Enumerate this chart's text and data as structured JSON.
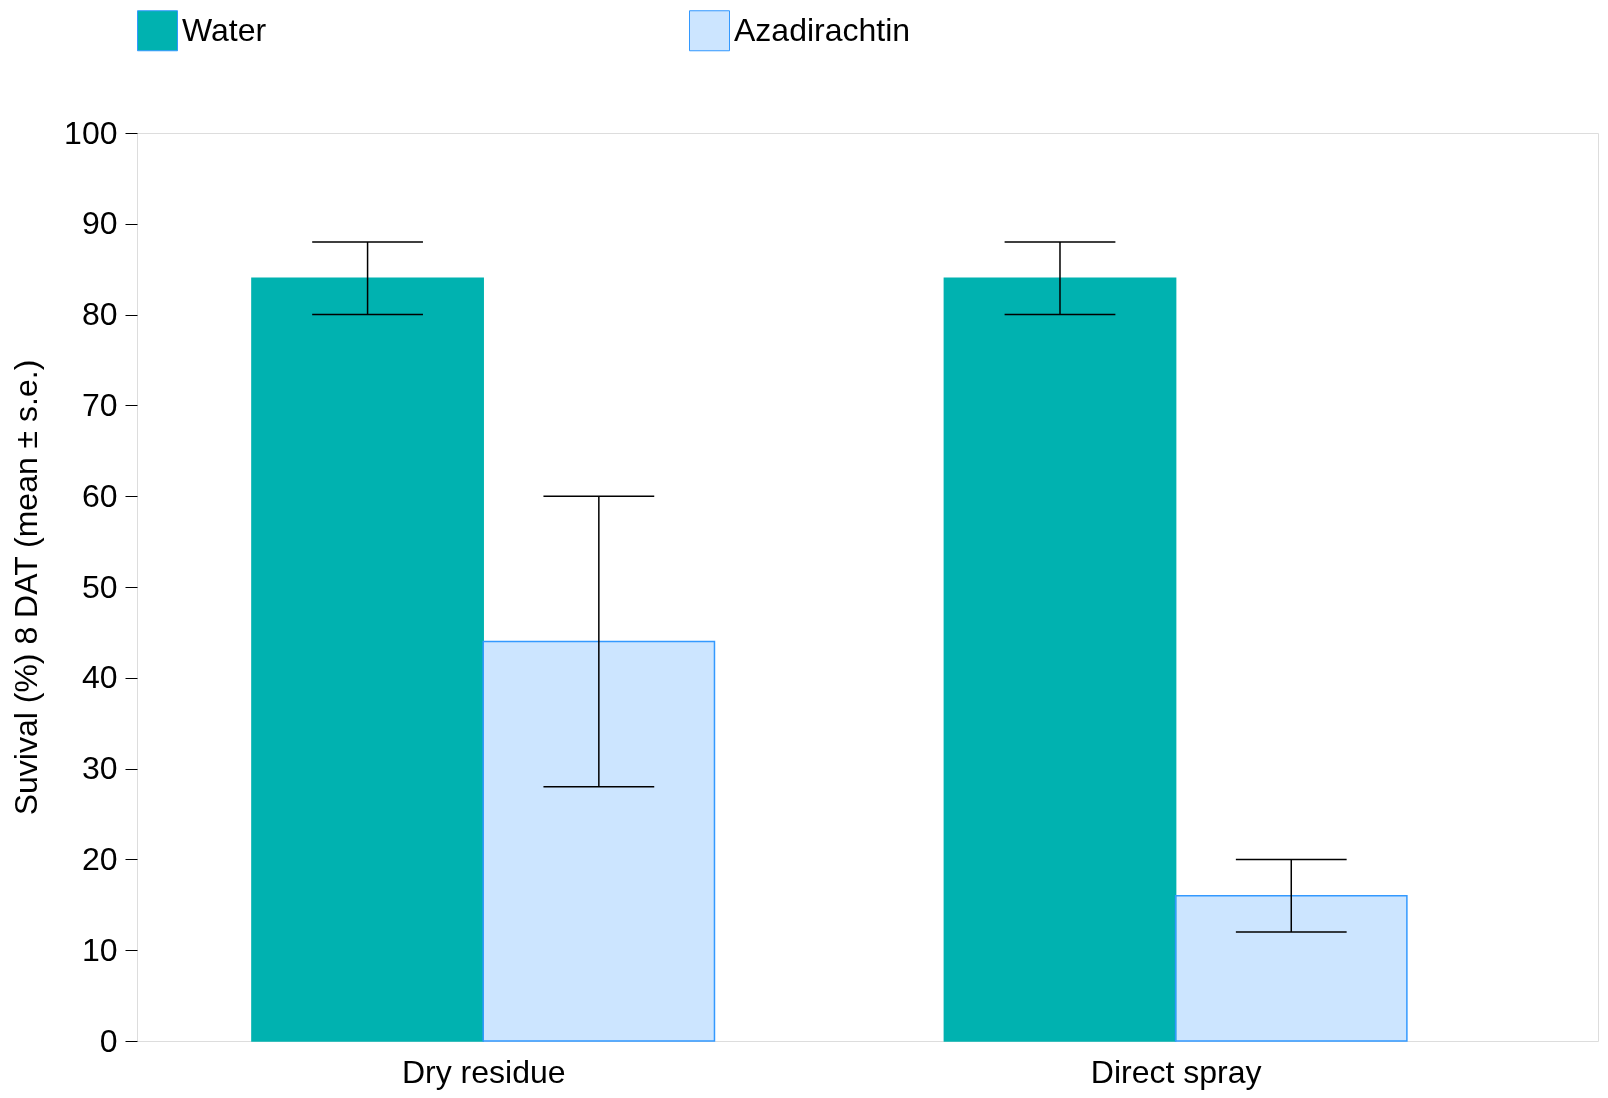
{
  "chart_data": {
    "type": "bar",
    "ylabel": "Suvival (%) 8 DAT (mean ± s.e.)",
    "categories": [
      "Dry residue",
      "Direct spray"
    ],
    "series": [
      {
        "name": "Water",
        "color": "#00b2b0",
        "values": [
          84,
          84
        ],
        "errors": [
          4,
          4
        ]
      },
      {
        "name": "Azadirachtin",
        "color": "#3399ff",
        "values": [
          44,
          16
        ],
        "errors": [
          16,
          4
        ]
      }
    ],
    "ylim": [
      0,
      100
    ],
    "yticks": [
      0,
      10,
      20,
      30,
      40,
      50,
      60,
      70,
      80,
      90,
      100
    ],
    "grid": false,
    "legend": "top"
  }
}
